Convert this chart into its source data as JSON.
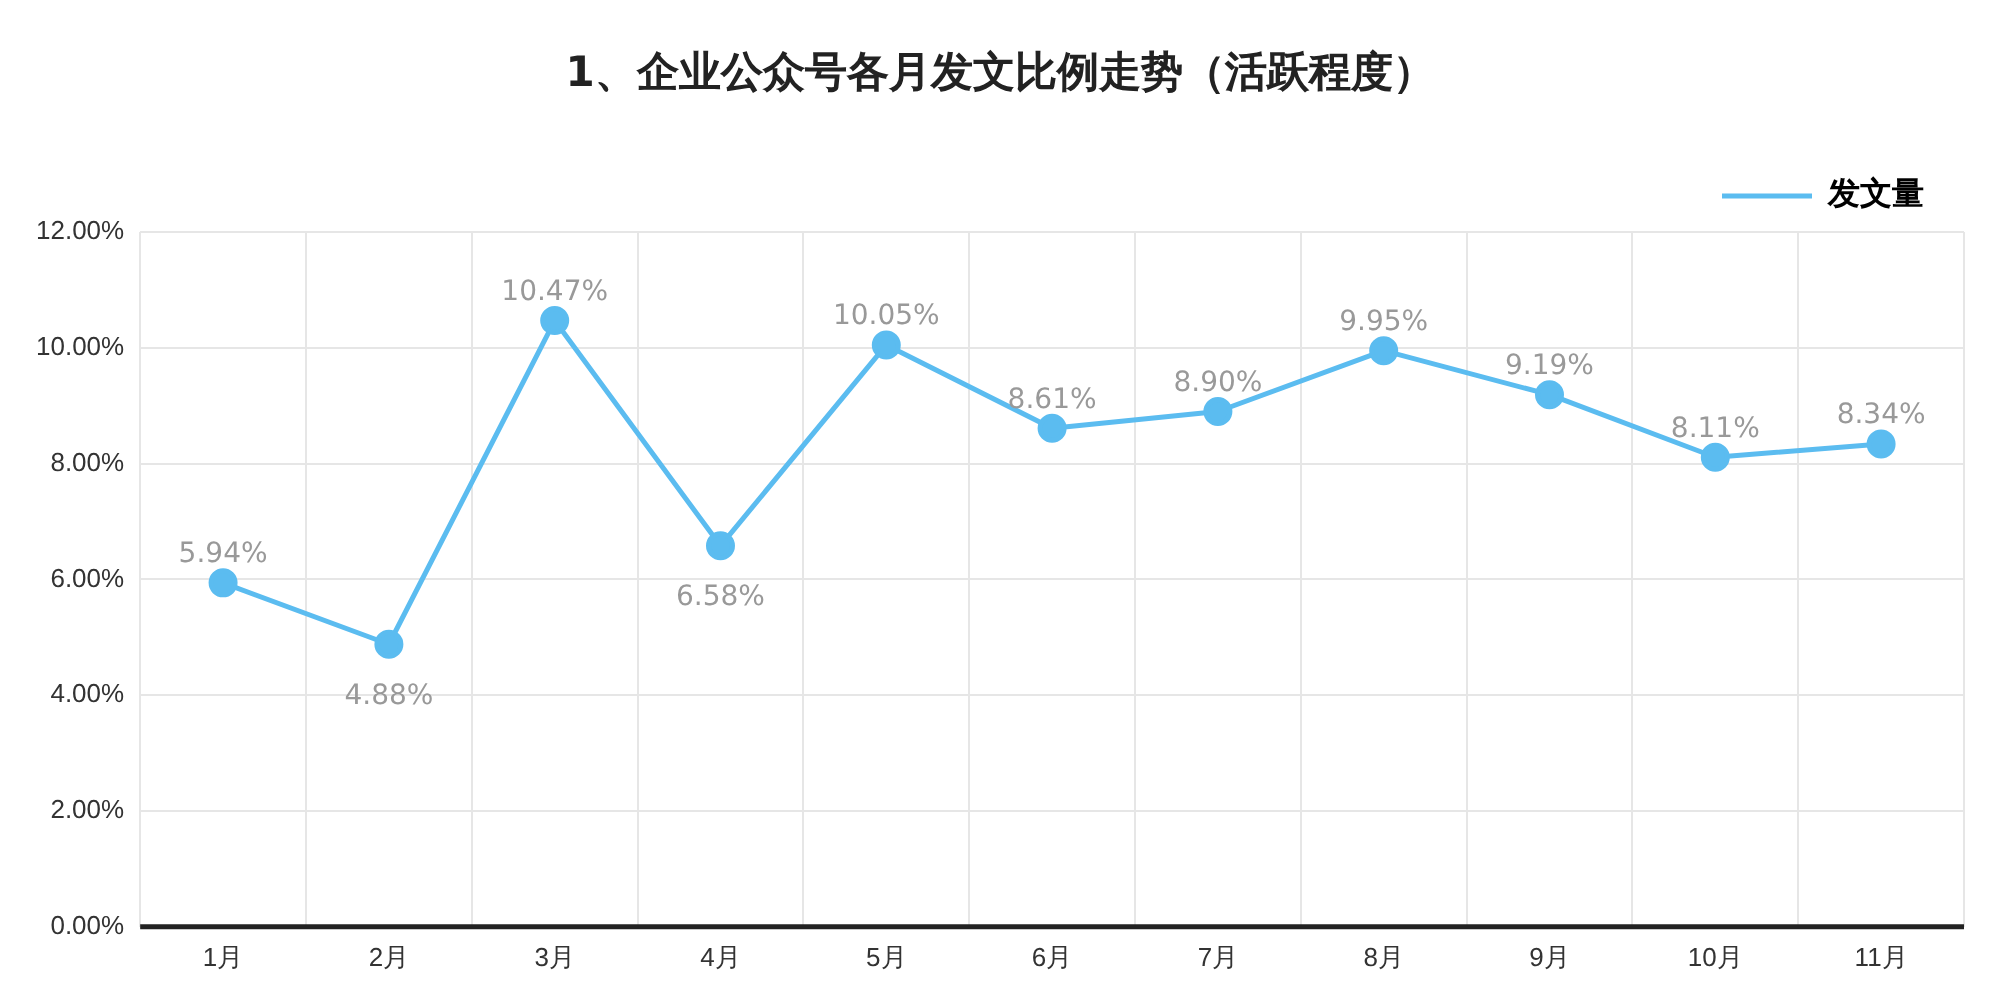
{
  "chart_data": {
    "type": "line",
    "title": "1、企业公众号各月发文比例走势（活跃程度）",
    "categories": [
      "1月",
      "2月",
      "3月",
      "4月",
      "5月",
      "6月",
      "7月",
      "8月",
      "9月",
      "10月",
      "11月"
    ],
    "series": [
      {
        "name": "发文量",
        "color": "#5bbcf0",
        "values": [
          5.94,
          4.88,
          10.47,
          6.58,
          10.05,
          8.61,
          8.9,
          9.95,
          9.19,
          8.11,
          8.34
        ],
        "value_labels": [
          "5.94%",
          "4.88%",
          "10.47%",
          "6.58%",
          "10.05%",
          "8.61%",
          "8.90%",
          "9.95%",
          "9.19%",
          "8.11%",
          "8.34%"
        ]
      }
    ],
    "ylim": [
      0,
      12
    ],
    "yticks": [
      {
        "value": 0,
        "label": "0.00%"
      },
      {
        "value": 2,
        "label": "2.00%"
      },
      {
        "value": 4,
        "label": "4.00%"
      },
      {
        "value": 6,
        "label": "6.00%"
      },
      {
        "value": 8,
        "label": "8.00%"
      },
      {
        "value": 10,
        "label": "10.00%"
      },
      {
        "value": 12,
        "label": "12.00%"
      }
    ],
    "grid": true,
    "legend": "top right",
    "marker": "circle",
    "line_style": "solid"
  }
}
